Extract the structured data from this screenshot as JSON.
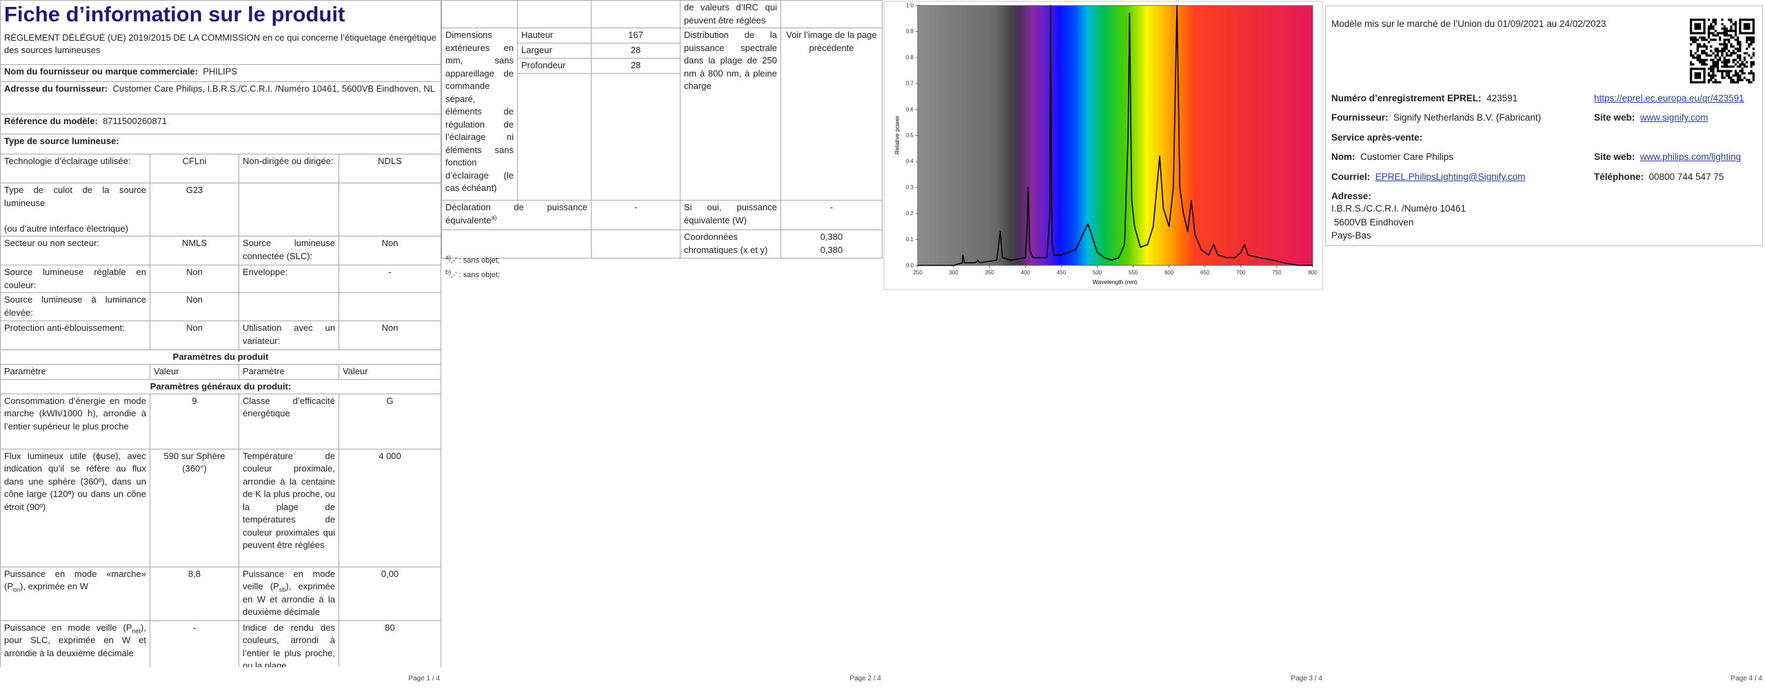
{
  "page1": {
    "title": "Fiche d’information sur le produit",
    "subtitle": "RÈGLEMENT DÉLÉGUÉ (UE) 2019/2015 DE LA COMMISSION en ce qui concerne l’étiquetage énergétique des sources lumineuses",
    "supplier": {
      "label": "Nom du fournisseur ou marque commerciale:",
      "value": "PHILIPS"
    },
    "address": {
      "label": "Adresse du fournisseur:",
      "value": "Customer Care Philips, I.B.R.S./C.C.R.I. /Numéro 10461, 5600VB Eindhoven, NL"
    },
    "model": {
      "label": "Référence du modèle:",
      "value": "8711500260871"
    },
    "source_type": "Type de source lumineuse:",
    "rows": [
      [
        "Technologie d’éclairage utilisée:",
        "CFLni",
        "Non-dirigée ou dirigée:",
        "NDLS"
      ],
      [
        "Type de culot de la source lumineuse\n\n(ou d’autre interface électrique)",
        "G23",
        null,
        null
      ],
      [
        "Secteur ou non secteur:",
        "NMLS",
        "Source lumineuse connectée (SLC):",
        "Non"
      ],
      [
        "Source lumineuse réglable en couleur:",
        "Non",
        "Enveloppe:",
        "-"
      ],
      [
        "Source lumineuse à luminance élevée:",
        "Non",
        null,
        null
      ],
      [
        "Protection anti-éblouissement:",
        "Non",
        "Utilisation avec un variateur:",
        "Non"
      ]
    ],
    "params_header": "Paramètres du produit",
    "params_columns": [
      "Paramètre",
      "Valeur",
      "Paramètre",
      "Valeur"
    ],
    "general_header": "Paramètres généraux du produit:",
    "general_rows": [
      [
        "Consommation d’énergie en mode marche (kWh/1000 h), arrondie à l’entier supérieur le plus proche",
        "9",
        "Classe d’efficacité énergétique",
        "G"
      ],
      [
        "Flux lumineux utile (ϕuse), avec indication qu’il se réfère au flux dans une sphère (360º), dans un cône large (120º) ou dans un cône étroit (90º)",
        "590 sur Sphère (360°)",
        "Température de couleur proximale, arrondie à la centaine de K la plus proche, ou la plage de températures de couleur proximales qui peuvent être réglées",
        "4 000"
      ],
      [
        [
          "Puissance en mode «marche» (P",
          {
            "sub": "on"
          },
          "), exprimée en W"
        ],
        "8,8",
        [
          "Puissance en mode veille (P",
          {
            "sub": "sb"
          },
          "), exprimée en W et arrondie à la deuxième décimale"
        ],
        "0,00"
      ],
      [
        [
          "Puissance en mode veille (P",
          {
            "sub": "net"
          },
          "), pour SLC, exprimée en W et arrondie à la deuxième décimale"
        ],
        "-",
        "Indice de rendu des couleurs, arrondi à l’entier le plus proche, ou la plage",
        "80"
      ]
    ]
  },
  "page2": {
    "continuation": "de valeurs d’IRC qui peuvent être réglées",
    "dimensions_label": "Dimensions extérieures en mm, sans appareillage de commande séparé, éléments de régulation de l’éclairage ni éléments sans fonction d’éclairage (le cas échéant)",
    "dimensions": [
      [
        "Hauteur",
        "167"
      ],
      [
        "Largeur",
        "28"
      ],
      [
        "Profondeur",
        "28"
      ]
    ],
    "spectral_label": "Distribution de la puissance spectrale dans la plage de 250 nm à 800 nm, à pleine charge",
    "spectral_value": "Voir l’image de la page précédente",
    "declaration": {
      "label": "Déclaration de puissance équivalente",
      "note": "a)",
      "value": "-",
      "question": "Si oui, puissance équivalente (W)",
      "answer": "-"
    },
    "chroma": {
      "label": "Coordonnées chromatiques (x et y)",
      "x": "0,380",
      "y": "0,380"
    },
    "footnotes": [
      {
        "mark": "a)",
        "text": "‚-‛ : sans objet;"
      },
      {
        "mark": "b)",
        "text": "‚-‛ : sans objet;"
      }
    ]
  },
  "chart_data": {
    "type": "line",
    "x_label": "Wavelength (nm)",
    "y_label": "Relative power",
    "color": "#000000",
    "x": [
      250,
      300,
      312,
      313,
      315,
      330,
      334,
      336,
      360,
      365,
      368,
      380,
      400,
      402,
      404,
      406,
      410,
      420,
      430,
      434,
      435,
      437,
      440,
      450,
      460,
      470,
      480,
      487,
      492,
      500,
      510,
      520,
      530,
      538,
      543,
      545,
      548,
      552,
      560,
      570,
      578,
      587,
      592,
      600,
      606,
      611,
      615,
      620,
      626,
      631,
      636,
      645,
      655,
      662,
      668,
      680,
      692,
      700,
      705,
      710,
      725,
      745,
      760,
      780,
      800
    ],
    "values": [
      0,
      0,
      0.01,
      0.04,
      0.01,
      0.01,
      0.02,
      0.01,
      0.02,
      0.13,
      0.03,
      0.02,
      0.03,
      0.12,
      0.3,
      0.06,
      0.03,
      0.03,
      0.03,
      0.2,
      1,
      0.08,
      0.04,
      0.04,
      0.05,
      0.06,
      0.12,
      0.16,
      0.12,
      0.05,
      0.03,
      0.02,
      0.03,
      0.08,
      0.5,
      0.97,
      0.25,
      0.15,
      0.07,
      0.08,
      0.15,
      0.42,
      0.22,
      0.15,
      0.3,
      1,
      0.3,
      0.2,
      0.13,
      0.25,
      0.12,
      0.06,
      0.04,
      0.08,
      0.04,
      0.03,
      0.03,
      0.05,
      0.08,
      0.04,
      0.03,
      0.02,
      0.01,
      0,
      0
    ],
    "xlim": [
      250,
      800
    ],
    "ylim": [
      0,
      1
    ],
    "xticks": [
      250,
      300,
      350,
      400,
      450,
      500,
      550,
      600,
      650,
      700,
      750,
      800
    ],
    "yticks": [
      {
        "value": 0,
        "label": "0.0"
      },
      0.1,
      0.2,
      0.3,
      0.4,
      0.5,
      0.6,
      0.7,
      0.8,
      0.9,
      {
        "value": 1,
        "label": "1.0"
      }
    ]
  },
  "page4": {
    "market": "Modèle mis sur le marché de l’Union du 01/09/2021 au 24/02/2023",
    "eprel": {
      "label": "Numéro d’enregistrement EPREL:",
      "value": "423591",
      "url": "https://eprel.ec.europa.eu/qr/423591"
    },
    "supplier": {
      "label": "Fournisseur:",
      "value": "Signify Netherlands B.V. (Fabricant)",
      "web_label": "Site web:",
      "web": "www.signify.com"
    },
    "service": "Service après-vente:",
    "name": {
      "label": "Nom:",
      "value": "Customer Care Philips",
      "web_label": "Site web:",
      "web": "www.philips.com/lighting"
    },
    "mail": {
      "label": "Courriel:",
      "value": "EPREL.PhilipsLighting@Signify.com",
      "phone_label": "Téléphone:",
      "phone": "00800 744 547 75"
    },
    "address": {
      "label": "Adresse:",
      "lines": [
        "I.B.R.S./C.C.R.I. /Numéro 10461",
        " 5600VB Eindhoven",
        "Pays-Bas"
      ]
    }
  },
  "footers": [
    "Page 1 / 4",
    "Page 2 / 4",
    "Page 3 / 4",
    "Page 4 / 4"
  ]
}
